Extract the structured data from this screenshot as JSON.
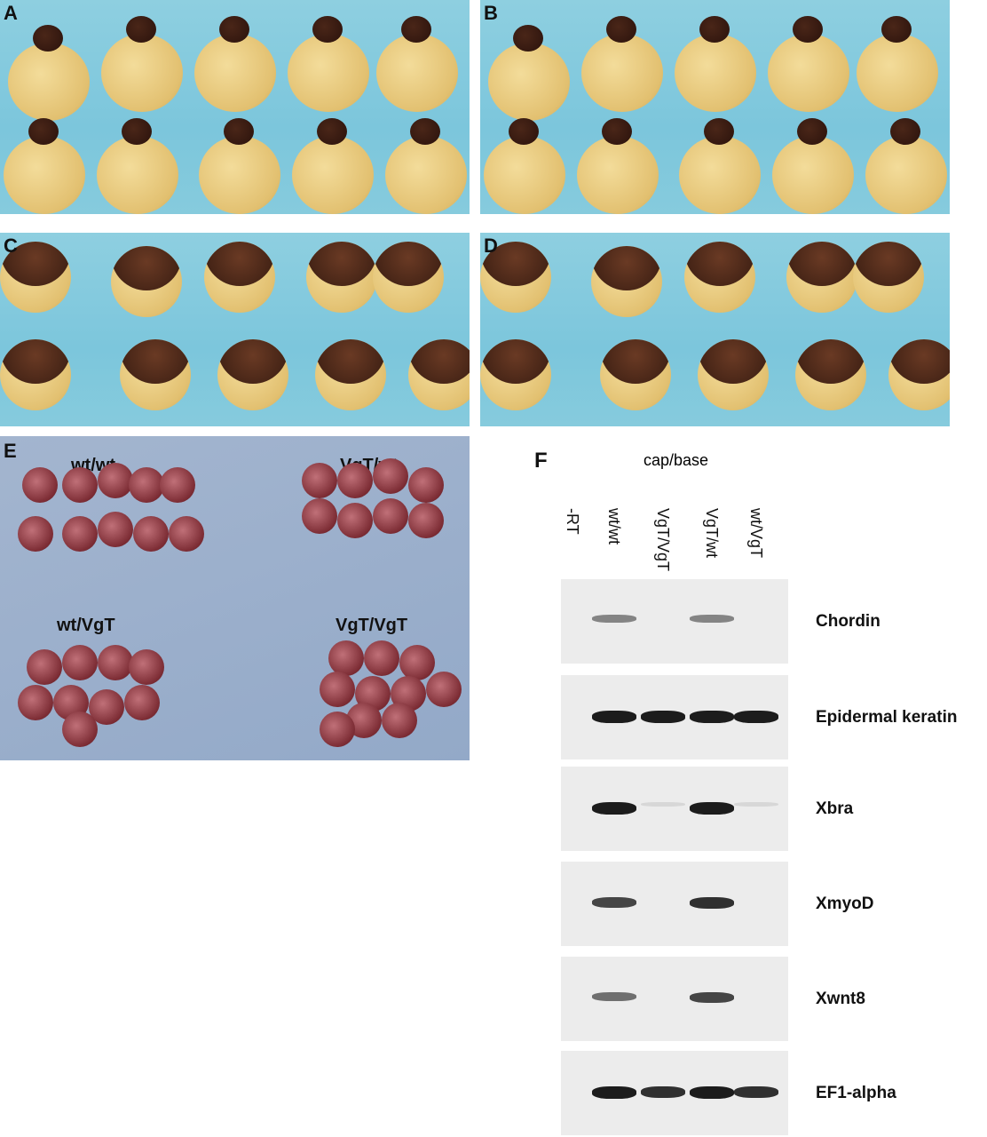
{
  "panels": {
    "a": "A",
    "b": "B",
    "c": "C",
    "d": "D",
    "e": "E",
    "f": "F"
  },
  "panel_e": {
    "groups": [
      "wt/wt",
      "VgT/wt",
      "wt/VgT",
      "VgT/VgT"
    ]
  },
  "panel_f": {
    "header": "cap/base",
    "lanes": [
      "-RT",
      "wt/wt",
      "VgT/VgT",
      "VgT/wt",
      "wt/VgT"
    ],
    "genes": [
      {
        "name": "Chordin",
        "bands": [
          0,
          0.5,
          0,
          0.5,
          0
        ]
      },
      {
        "name": "Epidermal keratin",
        "bands": [
          0,
          1,
          1,
          1,
          1
        ]
      },
      {
        "name": "Xbra",
        "bands": [
          0,
          1,
          0.1,
          1,
          0.1
        ]
      },
      {
        "name": "XmyoD",
        "bands": [
          0,
          0.8,
          0,
          0.9,
          0
        ]
      },
      {
        "name": "Xwnt8",
        "bands": [
          0,
          0.6,
          0,
          0.8,
          0
        ]
      },
      {
        "name": "EF1-alpha",
        "bands": [
          0,
          1,
          0.9,
          1,
          0.9
        ]
      }
    ]
  }
}
